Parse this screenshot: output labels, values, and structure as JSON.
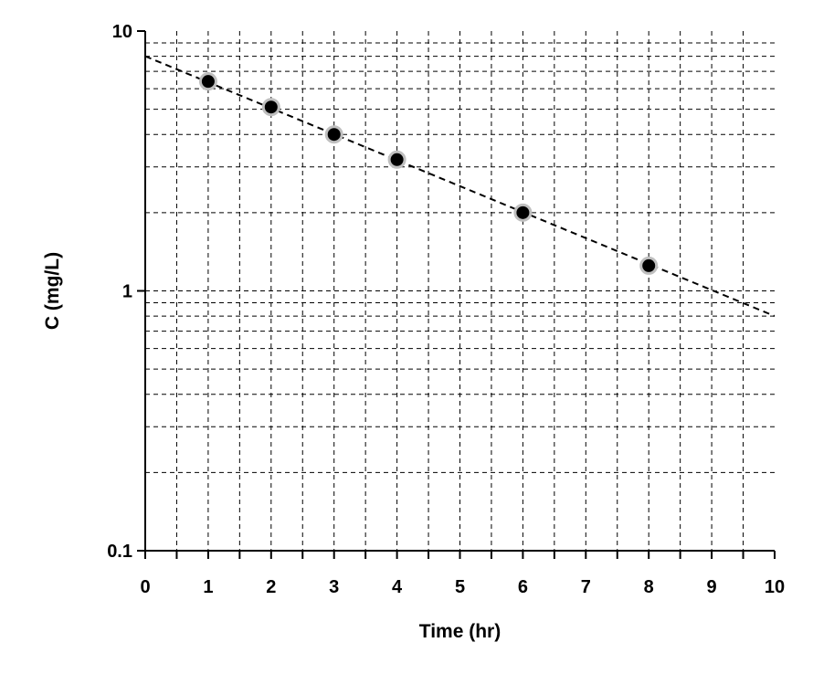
{
  "chart_data": {
    "type": "scatter",
    "xlabel": "Time (hr)",
    "ylabel": "C (mg/L)",
    "x_scale": "linear",
    "y_scale": "log",
    "xlim": [
      0,
      10
    ],
    "ylim": [
      0.1,
      10
    ],
    "x_major_ticks": [
      "0",
      "1",
      "2",
      "3",
      "4",
      "5",
      "6",
      "7",
      "8",
      "9",
      "10"
    ],
    "x_minor_step": 0.5,
    "y_major_ticks": [
      "0.1",
      "1",
      "10"
    ],
    "grid": true,
    "points": [
      {
        "x": 1,
        "y": 6.4
      },
      {
        "x": 2,
        "y": 5.1
      },
      {
        "x": 3,
        "y": 4.0
      },
      {
        "x": 4,
        "y": 3.2
      },
      {
        "x": 6,
        "y": 2.0
      },
      {
        "x": 8,
        "y": 1.25
      }
    ],
    "fit_line": {
      "x": [
        0,
        10
      ],
      "y": [
        8.0,
        0.8
      ]
    },
    "colors": {
      "marker_fill": "#000000",
      "marker_edge": "#bfbfbf",
      "fit_line": "#000000",
      "grid": "#000000",
      "axis": "#000000"
    }
  }
}
